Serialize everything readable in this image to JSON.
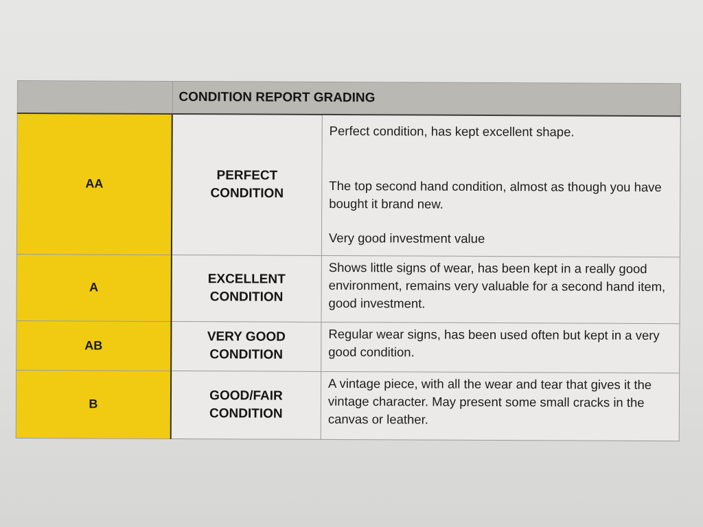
{
  "table": {
    "title": "CONDITION REPORT GRADING",
    "colors": {
      "grade_bg": "#f0cb12",
      "header_bg": "#bab8b3"
    },
    "rows": [
      {
        "grade": "AA",
        "condition_line1": "PERFECT",
        "condition_line2": "CONDITION",
        "descriptions": [
          "Perfect condition, has kept excellent shape.",
          "The top second hand condition, almost as though you have bought it brand new.",
          "Very good investment value"
        ]
      },
      {
        "grade": "A",
        "condition_line1": "EXCELLENT",
        "condition_line2": "CONDITION",
        "descriptions": [
          "Shows little signs of wear, has been kept in a really good environment, remains very valuable for a second hand item, good investment."
        ]
      },
      {
        "grade": "AB",
        "condition_line1": "VERY GOOD",
        "condition_line2": "CONDITION",
        "descriptions": [
          "Regular wear signs, has been used often but kept in a very good condition."
        ]
      },
      {
        "grade": "B",
        "condition_line1": "GOOD/FAIR",
        "condition_line2": "CONDITION",
        "descriptions": [
          "A vintage piece, with all the wear and tear that gives it the vintage character. May present some small cracks in the canvas or leather."
        ]
      }
    ]
  }
}
